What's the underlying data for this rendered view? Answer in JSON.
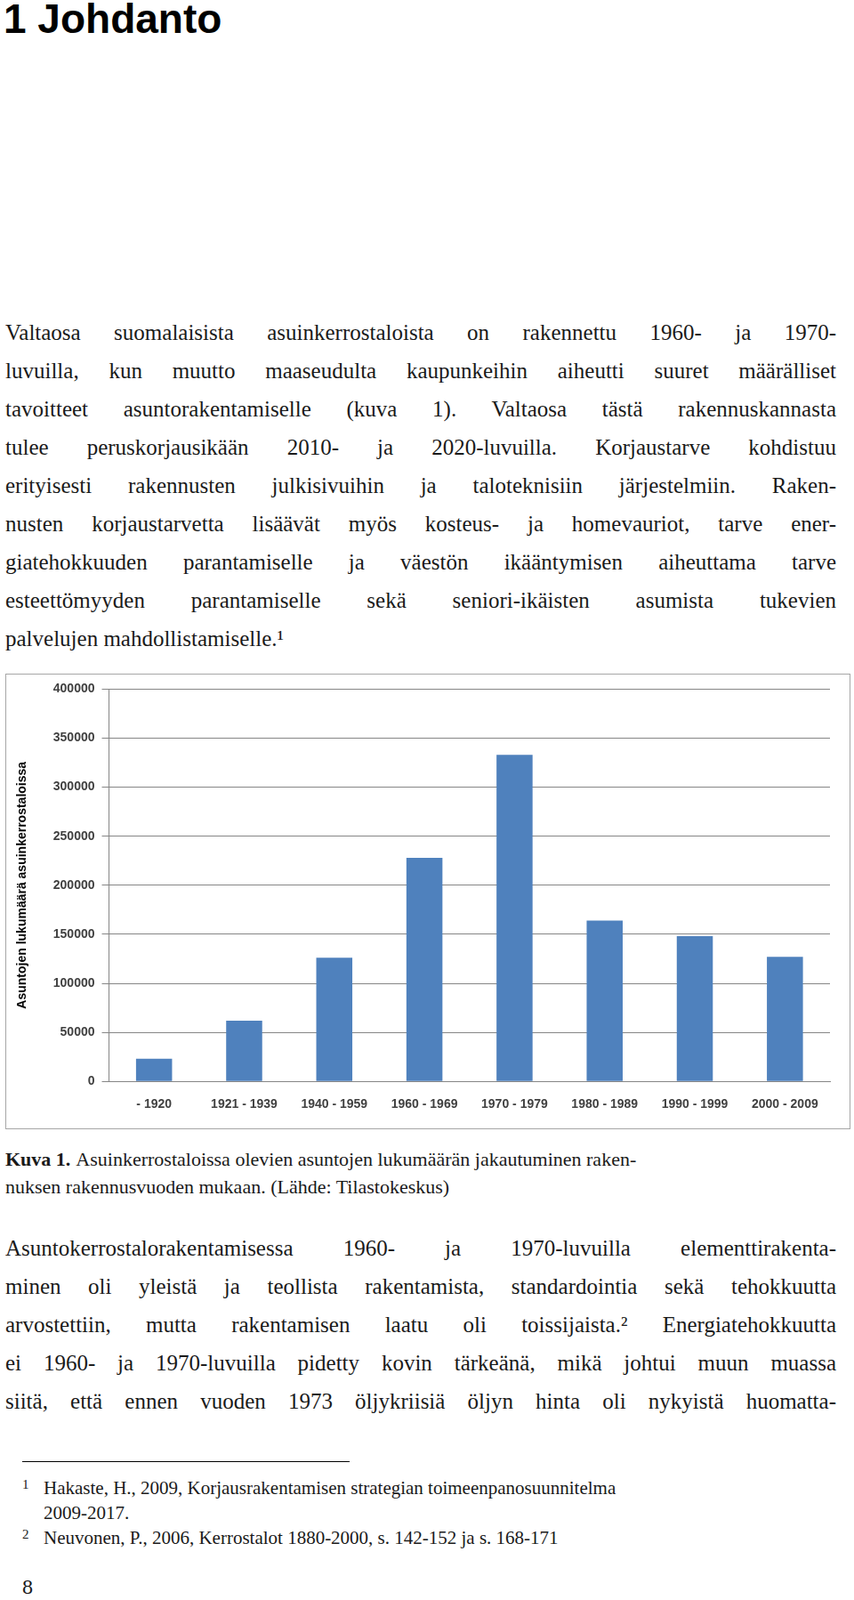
{
  "heading": "1 Johdanto",
  "paragraphs": [
    [
      "Valtaosa suomalaisista asuinkerrostaloista on rakennettu 1960- ja 1970-",
      "luvuilla, kun muutto maaseudulta kaupunkeihin aiheutti suuret määrälliset",
      "tavoitteet asuntorakentamiselle (kuva 1). Valtaosa tästä rakennuskannasta",
      "tulee peruskorjausikään 2010- ja 2020-luvuilla. Korjaustarve kohdistuu",
      "erityisesti rakennusten julkisivuihin ja taloteknisiin järjestelmiin. Raken-",
      "nusten korjaustarvetta lisäävät myös kosteus- ja homevauriot, tarve ener-",
      "giatehokkuuden parantamiselle ja väestön ikääntymisen aiheuttama tarve",
      "esteettömyyden parantamiselle sekä seniori-ikäisten asumista tukevien",
      "palvelujen mahdollistamiselle.¹"
    ],
    [
      "Asuntokerrostalorakentamisessa 1960- ja 1970-luvuilla elementtirakenta-",
      "minen oli yleistä ja teollista rakentamista, standardointia sekä tehokkuutta",
      "arvostettiin, mutta rakentamisen laatu oli toissijaista.² Energiatehokkuutta",
      "ei 1960- ja 1970-luvuilla pidetty kovin tärkeänä, mikä johtui muun muassa",
      "siitä, että ennen vuoden 1973 öljykriisiä öljyn hinta oli nykyistä huomatta-"
    ]
  ],
  "chart_data": {
    "type": "bar",
    "ylabel": "Asuntojen lukumäärä asuinkerrostaloissa",
    "categories": [
      "- 1920",
      "1921 - 1939",
      "1940 - 1959",
      "1960 - 1969",
      "1970 - 1979",
      "1980 - 1989",
      "1990 - 1999",
      "2000 - 2009"
    ],
    "values": [
      23000,
      62000,
      126000,
      228000,
      333000,
      164000,
      148000,
      127000
    ],
    "color": "#4f81bd",
    "ylim": [
      0,
      400000
    ],
    "yticks": [
      0,
      50000,
      100000,
      150000,
      200000,
      250000,
      300000,
      350000,
      400000
    ],
    "grid": true
  },
  "caption": {
    "label": "Kuva 1.",
    "lines": [
      "Asuinkerrostaloissa olevien asuntojen lukumäärän jakautuminen raken-",
      "nuksen rakennusvuoden mukaan. (Lähde: Tilastokeskus)"
    ]
  },
  "footnotes": [
    {
      "mark": "1",
      "lines": [
        "Hakaste, H., 2009, Korjausrakentamisen strategian toimeenpanosuunnitelma",
        "2009-2017."
      ]
    },
    {
      "mark": "2",
      "lines": [
        "Neuvonen, P., 2006, Kerrostalot 1880-2000, s. 142-152 ja s. 168-171"
      ]
    }
  ],
  "page_number": 8
}
